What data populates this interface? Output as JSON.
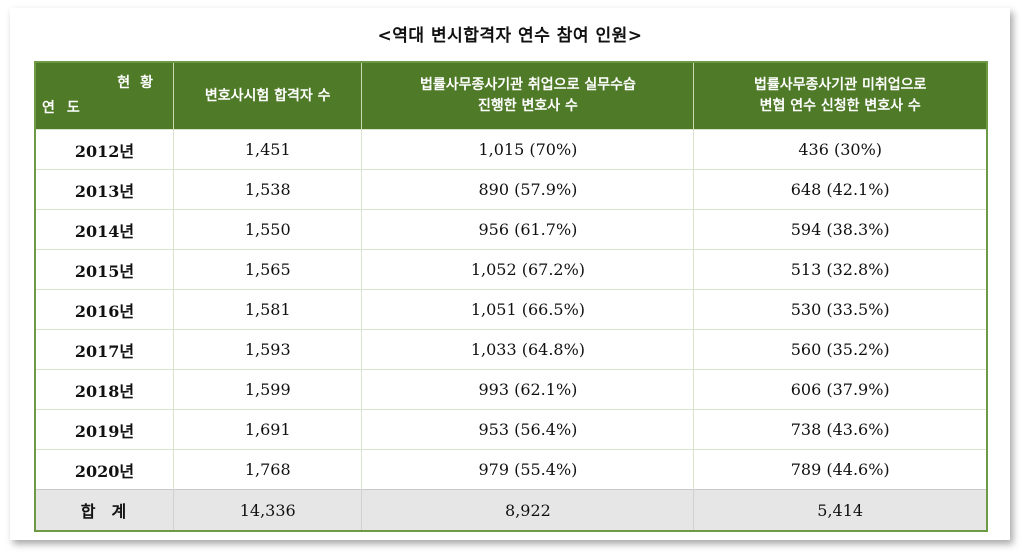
{
  "title": "<역대 변시합격자 연수 참여 인원>",
  "headers": {
    "corner_top": "현황",
    "corner_bottom": "연도",
    "col1": "변호사시험 합격자 수",
    "col2_line1": "법률사무종사기관 취업으로 실무수습",
    "col2_line2": "진행한 변호사 수",
    "col3_line1": "법률사무종사기관 미취업으로",
    "col3_line2": "변협 연수 신청한 변호사 수"
  },
  "rows": [
    {
      "year": "2012년",
      "passers": "1,451",
      "employed": "1,015 (70%)",
      "unemployed": "436 (30%)"
    },
    {
      "year": "2013년",
      "passers": "1,538",
      "employed": "890 (57.9%)",
      "unemployed": "648 (42.1%)"
    },
    {
      "year": "2014년",
      "passers": "1,550",
      "employed": "956 (61.7%)",
      "unemployed": "594 (38.3%)"
    },
    {
      "year": "2015년",
      "passers": "1,565",
      "employed": "1,052 (67.2%)",
      "unemployed": "513 (32.8%)"
    },
    {
      "year": "2016년",
      "passers": "1,581",
      "employed": "1,051 (66.5%)",
      "unemployed": "530 (33.5%)"
    },
    {
      "year": "2017년",
      "passers": "1,593",
      "employed": "1,033 (64.8%)",
      "unemployed": "560 (35.2%)"
    },
    {
      "year": "2018년",
      "passers": "1,599",
      "employed": "993 (62.1%)",
      "unemployed": "606 (37.9%)"
    },
    {
      "year": "2019년",
      "passers": "1,691",
      "employed": "953 (56.4%)",
      "unemployed": "738 (43.6%)"
    },
    {
      "year": "2020년",
      "passers": "1,768",
      "employed": "979 (55.4%)",
      "unemployed": "789 (44.6%)"
    }
  ],
  "total": {
    "label": "합계",
    "passers": "14,336",
    "employed": "8,922",
    "unemployed": "5,414"
  }
}
